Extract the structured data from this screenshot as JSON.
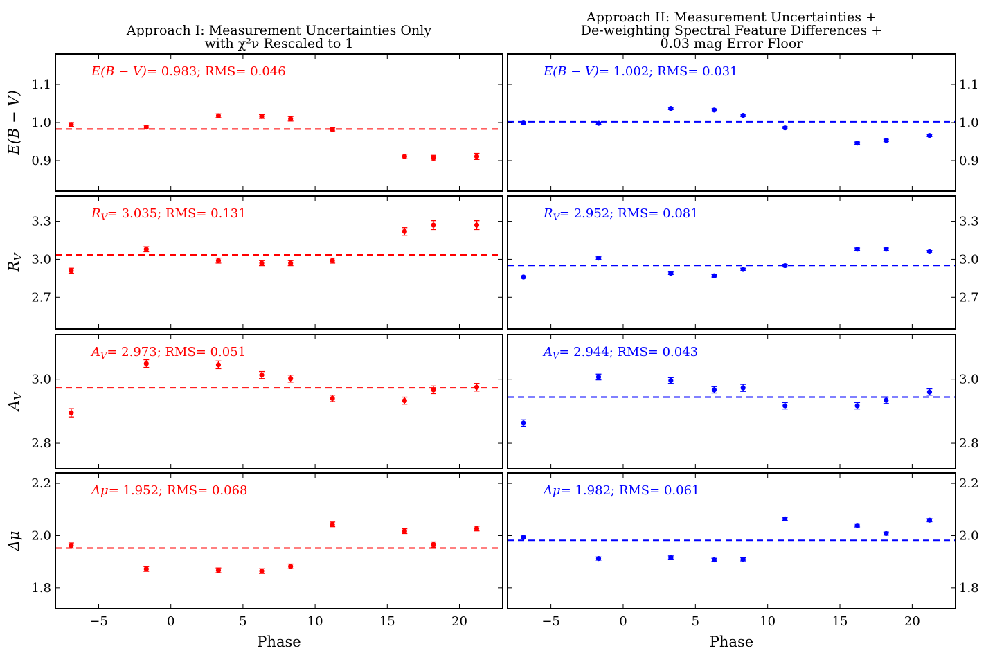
{
  "chart_data": {
    "type": "scatter",
    "columns": [
      {
        "title_lines": [
          "Approach I: Measurement Uncertainties Only",
          "with χ²ν Rescaled to 1"
        ],
        "color": "#ff0000",
        "xlabel": "Phase",
        "y_axis_side": "left"
      },
      {
        "title_lines": [
          "Approach II: Measurement Uncertainties +",
          "De-weighting Spectral Feature Differences +",
          "0.03 mag Error Floor"
        ],
        "color": "#0000ff",
        "xlabel": "Phase",
        "y_axis_side": "right"
      }
    ],
    "x": [
      -6.9,
      -1.7,
      3.3,
      6.3,
      8.3,
      11.2,
      16.2,
      18.2,
      21.2
    ],
    "xlim": [
      -8,
      23
    ],
    "xticks": [
      -5,
      0,
      5,
      10,
      15,
      20
    ],
    "xtick_labels": [
      "−5",
      "0",
      "5",
      "10",
      "15",
      "20"
    ],
    "rows": [
      {
        "ylabel": "E(B − V)",
        "ylim": [
          0.82,
          1.18
        ],
        "yticks": [
          0.9,
          1.0,
          1.1
        ],
        "ytick_labels": [
          "0.9",
          "1.0",
          "1.1"
        ],
        "panels": [
          {
            "annotation": "E(B − V)= 0.983; RMS= 0.046",
            "mean": 0.983,
            "y": [
              0.995,
              0.988,
              1.018,
              1.016,
              1.01,
              0.982,
              0.911,
              0.907,
              0.911
            ],
            "err": [
              0.005,
              0.005,
              0.005,
              0.005,
              0.006,
              0.004,
              0.006,
              0.007,
              0.008
            ]
          },
          {
            "annotation": "E(B − V)= 1.002; RMS= 0.031",
            "mean": 1.002,
            "y": [
              0.999,
              0.998,
              1.037,
              1.033,
              1.019,
              0.986,
              0.946,
              0.953,
              0.966
            ],
            "err": [
              0.003,
              0.003,
              0.003,
              0.003,
              0.003,
              0.003,
              0.003,
              0.003,
              0.003
            ]
          }
        ]
      },
      {
        "ylabel": "R_V",
        "ylim": [
          2.45,
          3.5
        ],
        "yticks": [
          2.7,
          3.0,
          3.3
        ],
        "ytick_labels": [
          "2.7",
          "3.0",
          "3.3"
        ],
        "panels": [
          {
            "annotation": "R_V= 3.035; RMS= 0.131",
            "mean": 3.035,
            "y": [
              2.91,
              3.08,
              2.99,
              2.97,
              2.97,
              2.99,
              3.22,
              3.27,
              3.27
            ],
            "err": [
              0.02,
              0.02,
              0.02,
              0.02,
              0.02,
              0.02,
              0.03,
              0.035,
              0.035
            ]
          },
          {
            "annotation": "R_V= 2.952; RMS= 0.081",
            "mean": 2.952,
            "y": [
              2.86,
              3.01,
              2.89,
              2.87,
              2.92,
              2.95,
              3.08,
              3.08,
              3.06
            ],
            "err": [
              0.01,
              0.01,
              0.01,
              0.01,
              0.01,
              0.01,
              0.01,
              0.01,
              0.01
            ]
          }
        ]
      },
      {
        "ylabel": "A_V",
        "ylim": [
          2.72,
          3.14
        ],
        "yticks": [
          2.8,
          3.0
        ],
        "ytick_labels": [
          "2.8",
          "3.0"
        ],
        "panels": [
          {
            "annotation": "A_V= 2.973; RMS= 0.051",
            "mean": 2.973,
            "y": [
              2.895,
              3.049,
              3.045,
              3.013,
              3.002,
              2.94,
              2.933,
              2.967,
              2.975
            ],
            "err": [
              0.013,
              0.012,
              0.012,
              0.011,
              0.011,
              0.01,
              0.011,
              0.012,
              0.012
            ]
          },
          {
            "annotation": "A_V= 2.944; RMS= 0.043",
            "mean": 2.944,
            "y": [
              2.863,
              3.007,
              2.996,
              2.967,
              2.973,
              2.917,
              2.917,
              2.934,
              2.96
            ],
            "err": [
              0.01,
              0.009,
              0.009,
              0.01,
              0.011,
              0.01,
              0.01,
              0.01,
              0.01
            ]
          }
        ]
      },
      {
        "ylabel": "Δμ",
        "ylim": [
          1.72,
          2.24
        ],
        "yticks": [
          1.8,
          2.0,
          2.2
        ],
        "ytick_labels": [
          "1.8",
          "2.0",
          "2.2"
        ],
        "panels": [
          {
            "annotation": "Δμ= 1.952; RMS= 0.068",
            "mean": 1.952,
            "y": [
              1.962,
              1.872,
              1.867,
              1.864,
              1.882,
              2.043,
              2.017,
              1.966,
              2.027
            ],
            "err": [
              0.01,
              0.009,
              0.009,
              0.009,
              0.009,
              0.009,
              0.009,
              0.01,
              0.009
            ]
          },
          {
            "annotation": "Δμ= 1.982; RMS= 0.061",
            "mean": 1.982,
            "y": [
              1.993,
              1.912,
              1.916,
              1.907,
              1.909,
              2.064,
              2.039,
              2.008,
              2.059
            ],
            "err": [
              0.006,
              0.006,
              0.006,
              0.006,
              0.006,
              0.006,
              0.006,
              0.006,
              0.006
            ]
          }
        ]
      }
    ]
  }
}
